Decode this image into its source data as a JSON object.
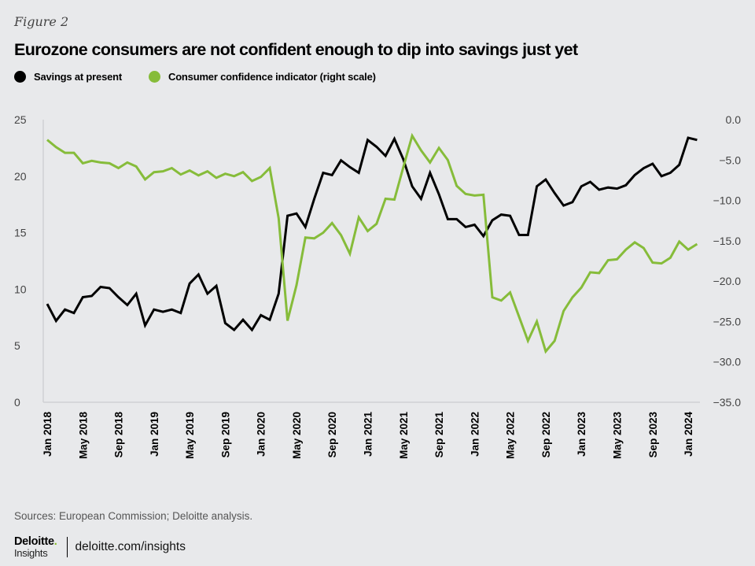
{
  "figure_label": "Figure 2",
  "title": "Eurozone consumers are not confident enough to dip into savings just yet",
  "legend": [
    {
      "label": "Savings at present",
      "color": "#000000"
    },
    {
      "label": "Consumer confidence indicator (right scale)",
      "color": "#86bc3a"
    }
  ],
  "source": "Sources: European Commission; Deloitte analysis.",
  "footer": {
    "brand": "Deloitte",
    "brand_dot": ".",
    "sub": "Insights",
    "url": "deloitte.com/insights"
  },
  "chart_data": {
    "type": "line",
    "title": "Eurozone consumers are not confident enough to dip into savings just yet",
    "xlabel": "",
    "ylabel": "",
    "ylabel_right": "",
    "x_start": "Jan 2018",
    "x_end": "Feb 2024",
    "x_frequency": "monthly",
    "x_tick_labels": [
      "Jan 2018",
      "May 2018",
      "Sep 2018",
      "Jan 2019",
      "May 2019",
      "Sep 2019",
      "Jan 2020",
      "May 2020",
      "Sep 2020",
      "Jan 2021",
      "May 2021",
      "Sep 2021",
      "Jan 2022",
      "May 2022",
      "Sep 2022",
      "Jan 2023",
      "May 2023",
      "Sep 2023",
      "Jan 2024"
    ],
    "x_tick_every_months": 4,
    "y_left": {
      "range": [
        0,
        25
      ],
      "ticks": [
        "0",
        "5",
        "10",
        "15",
        "20",
        "25"
      ]
    },
    "y_right": {
      "range": [
        -35,
        0
      ],
      "ticks": [
        "0.0",
        "−5.0",
        "−10.0",
        "−15.0",
        "−20.0",
        "−25.0",
        "−30.0",
        "−35.0"
      ]
    },
    "grid": false,
    "legend_position": "top-left",
    "series": [
      {
        "name": "Savings at present",
        "axis": "left",
        "color": "#000000",
        "values": [
          8.7,
          7.2,
          8.2,
          7.9,
          9.3,
          9.4,
          10.2,
          10.1,
          9.3,
          8.6,
          9.6,
          6.8,
          8.2,
          8.0,
          8.2,
          7.9,
          10.5,
          11.3,
          9.6,
          10.3,
          7.0,
          6.4,
          7.3,
          6.4,
          7.7,
          7.3,
          9.6,
          16.5,
          16.7,
          15.5,
          18.0,
          20.3,
          20.1,
          21.4,
          20.8,
          20.3,
          23.2,
          22.6,
          21.8,
          23.3,
          21.5,
          19.1,
          18.0,
          20.3,
          18.4,
          16.2,
          16.2,
          15.5,
          15.7,
          14.7,
          16.1,
          16.6,
          16.5,
          14.8,
          14.8,
          19.1,
          19.7,
          18.5,
          17.4,
          17.7,
          19.1,
          19.5,
          18.8,
          19.0,
          18.9,
          19.2,
          20.1,
          20.7,
          21.1,
          20.0,
          20.3,
          21.0,
          23.4,
          23.2
        ]
      },
      {
        "name": "Consumer confidence indicator (right scale)",
        "axis": "right",
        "color": "#86bc3a",
        "values": [
          -2.5,
          -3.4,
          -4.1,
          -4.1,
          -5.4,
          -5.1,
          -5.3,
          -5.4,
          -6.0,
          -5.3,
          -5.8,
          -7.4,
          -6.5,
          -6.4,
          -6.0,
          -6.8,
          -6.3,
          -6.9,
          -6.4,
          -7.2,
          -6.7,
          -7.0,
          -6.5,
          -7.6,
          -7.1,
          -6.0,
          -12.2,
          -24.9,
          -20.5,
          -14.6,
          -14.7,
          -14.0,
          -12.8,
          -14.3,
          -16.6,
          -12.1,
          -13.8,
          -12.9,
          -9.8,
          -9.9,
          -5.9,
          -2.0,
          -3.8,
          -5.3,
          -3.5,
          -5.0,
          -8.2,
          -9.2,
          -9.4,
          -9.3,
          -22.0,
          -22.4,
          -21.4,
          -24.4,
          -27.4,
          -25.0,
          -28.7,
          -27.4,
          -23.7,
          -22.0,
          -20.8,
          -18.9,
          -19.0,
          -17.4,
          -17.3,
          -16.1,
          -15.2,
          -15.9,
          -17.7,
          -17.8,
          -17.1,
          -15.1,
          -16.1,
          -15.4
        ]
      }
    ]
  }
}
